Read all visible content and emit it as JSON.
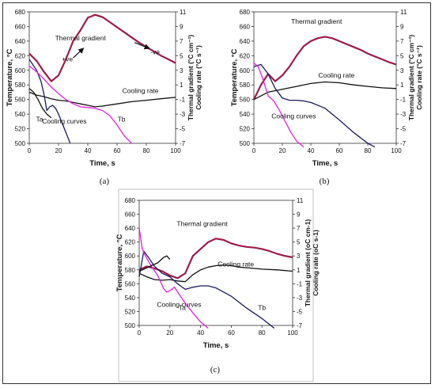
{
  "colors": {
    "purple": "#7a1f7a",
    "red": "#c01818",
    "magenta": "#e020e0",
    "navy": "#1a1a5e",
    "black": "#111111"
  },
  "chart_data": [
    {
      "type": "line",
      "panel_label": "(a)",
      "xlabel": "Time, s",
      "ylabel": "Temperature, °C",
      "y2label": "Thermal gradient (°C cm⁻¹)",
      "y3label": "Cooling rate (°C s⁻¹)",
      "xlim": [
        0,
        100
      ],
      "ylim": [
        500,
        680
      ],
      "y2lim": [
        -7,
        11
      ],
      "xticks": [
        0,
        20,
        40,
        60,
        80,
        100
      ],
      "yticks": [
        500,
        520,
        540,
        560,
        580,
        600,
        620,
        640,
        660,
        680
      ],
      "y2ticks": [
        -7,
        -5,
        -3,
        -1,
        1,
        3,
        5,
        7,
        9,
        11
      ],
      "annotations": [
        {
          "text": "Thermal gradient",
          "x": 35,
          "y": 641
        },
        {
          "text": "+ve",
          "x": 26,
          "y": 612
        },
        {
          "text": "-ve",
          "x": 86,
          "y": 622
        },
        {
          "text": "Cooling rate",
          "x": 76,
          "y": 569
        },
        {
          "text": "Ta",
          "x": 7,
          "y": 530
        },
        {
          "text": "Cooling curves",
          "x": 24,
          "y": 527
        },
        {
          "text": "Tb",
          "x": 63,
          "y": 530
        }
      ],
      "series": [
        {
          "role": "thermal_gradient",
          "axis": "right",
          "color": "red",
          "x": [
            0,
            5,
            10,
            15,
            20,
            25,
            30,
            35,
            40,
            45,
            50,
            55,
            60,
            65,
            70,
            75,
            80,
            85,
            90,
            95,
            100
          ],
          "y": [
            5.3,
            4.3,
            2.8,
            1.5,
            2.3,
            4.5,
            7.0,
            8.5,
            10.2,
            10.6,
            10.3,
            9.6,
            8.9,
            8.2,
            7.5,
            6.8,
            6.2,
            5.6,
            5.0,
            4.5,
            4.0
          ]
        },
        {
          "role": "cooling_rate",
          "axis": "right",
          "color": "black",
          "x": [
            0,
            5,
            10,
            15,
            20,
            25,
            30,
            35,
            40,
            45,
            50,
            60,
            70,
            80,
            90,
            100
          ],
          "y": [
            0.0,
            -0.4,
            -0.6,
            -0.9,
            -1.1,
            -1.2,
            -1.4,
            -1.6,
            -1.8,
            -2.0,
            -1.9,
            -1.6,
            -1.3,
            -1.1,
            -0.9,
            -0.7
          ]
        },
        {
          "role": "cooling_curve_Ta",
          "axis": "left",
          "color": "navy",
          "x": [
            0,
            5,
            8,
            10,
            12,
            14,
            16,
            18,
            20,
            22,
            25,
            28
          ],
          "y": [
            615,
            600,
            585,
            568,
            545,
            550,
            552,
            548,
            540,
            530,
            515,
            500
          ]
        },
        {
          "role": "cooling_curve_Tb",
          "axis": "left",
          "color": "magenta",
          "x": [
            0,
            5,
            10,
            15,
            20,
            25,
            30,
            35,
            40,
            45,
            50,
            55,
            60,
            65,
            70
          ],
          "y": [
            606,
            598,
            588,
            577,
            568,
            560,
            554,
            550,
            549,
            548,
            545,
            538,
            525,
            510,
            500
          ]
        },
        {
          "role": "cooling_curve_extra",
          "axis": "left",
          "color": "black",
          "x": [
            0,
            3,
            6,
            9,
            12,
            15
          ],
          "y": [
            575,
            570,
            560,
            548,
            540,
            535
          ]
        }
      ]
    },
    {
      "type": "line",
      "panel_label": "(b)",
      "xlabel": "Time, s",
      "ylabel": "Temperature, °C",
      "y2label": "Thermal gradient (°C cm⁻¹)",
      "y3label": "Cooling rate (°C s⁻¹)",
      "xlim": [
        0,
        100
      ],
      "ylim": [
        500,
        680
      ],
      "y2lim": [
        -7,
        11
      ],
      "xticks": [
        0,
        20,
        40,
        60,
        80,
        100
      ],
      "yticks": [
        500,
        520,
        540,
        560,
        580,
        600,
        620,
        640,
        660,
        680
      ],
      "y2ticks": [
        -7,
        -5,
        -3,
        -1,
        1,
        3,
        5,
        7,
        9,
        11
      ],
      "annotations": [
        {
          "text": "Thermal gradient",
          "x": 44,
          "y": 664
        },
        {
          "text": "Cooling rate",
          "x": 58,
          "y": 590
        },
        {
          "text": "Cooling curves",
          "x": 28,
          "y": 534
        }
      ],
      "series": [
        {
          "role": "thermal_gradient",
          "axis": "right",
          "color": "red",
          "x": [
            0,
            5,
            10,
            15,
            20,
            25,
            30,
            35,
            40,
            45,
            50,
            55,
            60,
            65,
            70,
            75,
            80,
            85,
            90,
            95,
            100
          ],
          "y": [
            -1,
            1,
            2.5,
            1.5,
            2.3,
            3.5,
            5,
            6.3,
            7.0,
            7.4,
            7.6,
            7.4,
            7.0,
            6.6,
            6.2,
            5.8,
            5.3,
            4.9,
            4.5,
            4.1,
            3.8
          ]
        },
        {
          "role": "cooling_rate",
          "axis": "right",
          "color": "black",
          "x": [
            0,
            5,
            10,
            20,
            30,
            40,
            50,
            60,
            70,
            80,
            90,
            100
          ],
          "y": [
            -1.0,
            -0.5,
            0.0,
            0.4,
            0.8,
            1.2,
            1.4,
            1.3,
            1.0,
            0.8,
            0.6,
            0.5
          ]
        },
        {
          "role": "cooling_curve_Ta",
          "axis": "left",
          "color": "navy",
          "x": [
            0,
            5,
            10,
            15,
            20,
            25,
            30,
            35,
            40,
            50,
            60,
            70,
            80,
            85
          ],
          "y": [
            605,
            608,
            595,
            575,
            562,
            559,
            559,
            558,
            556,
            548,
            532,
            515,
            500,
            495
          ]
        },
        {
          "role": "cooling_curve_Tb",
          "axis": "left",
          "color": "magenta",
          "x": [
            0,
            3,
            6,
            10,
            14,
            18,
            22,
            26,
            30,
            35
          ],
          "y": [
            610,
            605,
            590,
            565,
            558,
            545,
            530,
            515,
            503,
            495
          ]
        }
      ]
    },
    {
      "type": "line",
      "panel_label": "(c)",
      "xlabel": "Time, s",
      "ylabel": "Temperature, °C",
      "y2label": "Thermal gradient (oC cm-1)",
      "y3label": "Cooling rate (oC s-1)",
      "xlim": [
        0,
        100
      ],
      "ylim": [
        500,
        680
      ],
      "y2lim": [
        -7,
        11
      ],
      "xticks": [
        0,
        20,
        40,
        60,
        80,
        100
      ],
      "yticks": [
        500,
        520,
        540,
        560,
        580,
        600,
        620,
        640,
        660,
        680
      ],
      "y2ticks": [
        -7,
        -5,
        -3,
        -1,
        1,
        3,
        5,
        7,
        9,
        11
      ],
      "annotations": [
        {
          "text": "Thermal gradient",
          "x": 41,
          "y": 643
        },
        {
          "text": "Cooling rate",
          "x": 63,
          "y": 585
        },
        {
          "text": "Cooling curves",
          "x": 26,
          "y": 527
        },
        {
          "text": "Ta",
          "x": 28,
          "y": 522
        },
        {
          "text": "Tb",
          "x": 80,
          "y": 522
        }
      ],
      "series": [
        {
          "role": "thermal_gradient",
          "axis": "right",
          "color": "red",
          "x": [
            0,
            5,
            10,
            15,
            20,
            25,
            30,
            35,
            40,
            45,
            50,
            55,
            60,
            65,
            70,
            75,
            80,
            85,
            90,
            95,
            100
          ],
          "y": [
            1,
            1.5,
            1.2,
            0.8,
            0.2,
            -0.2,
            0.5,
            3.0,
            4.0,
            5.0,
            5.5,
            5.3,
            4.8,
            4.5,
            4.3,
            4.2,
            4.0,
            3.7,
            3.3,
            3.0,
            2.8
          ]
        },
        {
          "role": "cooling_rate",
          "axis": "right",
          "color": "black",
          "x": [
            0,
            5,
            10,
            15,
            20,
            25,
            30,
            35,
            40,
            45,
            50,
            55,
            60,
            65,
            70,
            80,
            90,
            100
          ],
          "y": [
            0.5,
            0.0,
            -0.4,
            -0.5,
            -0.4,
            -0.6,
            -0.7,
            0.3,
            1.0,
            1.4,
            1.6,
            1.7,
            1.6,
            1.4,
            1.3,
            1.1,
            1.0,
            0.8
          ]
        },
        {
          "role": "cooling_curve_Ta",
          "axis": "left",
          "color": "navy",
          "x": [
            0,
            3,
            6,
            10,
            15,
            20,
            25,
            30,
            35,
            40,
            45,
            50,
            60,
            70,
            80,
            88
          ],
          "y": [
            570,
            607,
            598,
            585,
            575,
            570,
            560,
            552,
            555,
            557,
            557,
            554,
            542,
            525,
            510,
            496
          ]
        },
        {
          "role": "cooling_curve_Tb",
          "axis": "left",
          "color": "magenta",
          "x": [
            0,
            2,
            4,
            8,
            12,
            16,
            18,
            20,
            23,
            26,
            30,
            35,
            40,
            45
          ],
          "y": [
            640,
            610,
            600,
            585,
            572,
            553,
            548,
            550,
            555,
            545,
            532,
            518,
            505,
            496
          ]
        },
        {
          "role": "cooling_curve_extra",
          "axis": "left",
          "color": "black",
          "x": [
            0,
            4,
            8,
            12,
            16,
            18,
            20
          ],
          "y": [
            578,
            582,
            586,
            590,
            598,
            600,
            595
          ]
        }
      ]
    }
  ]
}
